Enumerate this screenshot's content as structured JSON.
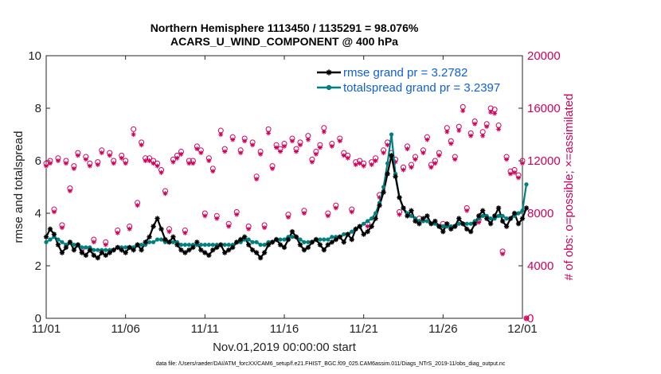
{
  "title": {
    "line1": "Northern Hemisphere 1113450 / 1135291 = 98.076%",
    "line2": "ACARS_U_WIND_COMPONENT @ 400 hPa"
  },
  "footer": "data file: /Users/raeder/DAI/ATM_forcXX/CAM6_setup/f.e21.FHIST_BGC.f09_025.CAM6assim.011/Diags_NTrS_2019-11/obs_diag_output.nc",
  "colors": {
    "rmse": "#000000",
    "spread": "#008080",
    "obs": "#d0005a",
    "legend_text": "#1060d8"
  },
  "chart_data": {
    "type": "line",
    "title": "Northern Hemisphere 1113450 / 1135291 = 98.076% — ACARS_U_WIND_COMPONENT @ 400 hPa",
    "xlabel": "Nov.01,2019 00:00:00 start",
    "ylabel": "rmse and totalspread",
    "ylabel_right": "# of obs: o=possible; ×=assimilated",
    "x_ticks": [
      "11/01",
      "11/06",
      "11/11",
      "11/16",
      "11/21",
      "11/26",
      "12/01"
    ],
    "xlim": [
      0,
      30
    ],
    "ylim": [
      0,
      10
    ],
    "y_ticks": [
      "0",
      "2",
      "4",
      "6",
      "8",
      "10"
    ],
    "ylim_right": [
      0,
      20000
    ],
    "y_ticks_right": [
      "0",
      "4000",
      "8000",
      "12000",
      "16000",
      "20000"
    ],
    "legend_position": "top-right",
    "series": [
      {
        "name": "rmse grand pr = 3.2782",
        "axis": "left",
        "x_start": 0,
        "dx": 0.25,
        "values": [
          3.1,
          3.4,
          3.2,
          2.8,
          2.5,
          2.7,
          2.9,
          2.6,
          2.8,
          2.5,
          2.4,
          2.6,
          2.4,
          2.3,
          2.5,
          2.4,
          2.5,
          2.6,
          2.7,
          2.6,
          2.5,
          2.7,
          2.6,
          2.8,
          2.6,
          2.9,
          3.1,
          3.5,
          3.8,
          3.4,
          3.0,
          2.9,
          3.1,
          2.8,
          2.6,
          2.5,
          2.6,
          2.7,
          2.9,
          2.6,
          2.5,
          2.4,
          2.6,
          2.7,
          2.8,
          2.5,
          2.6,
          2.7,
          2.9,
          3.0,
          3.1,
          2.8,
          2.6,
          2.5,
          2.3,
          2.5,
          2.8,
          2.9,
          3.0,
          2.8,
          2.7,
          3.0,
          3.3,
          3.1,
          2.8,
          2.6,
          2.7,
          2.9,
          3.0,
          2.8,
          2.6,
          2.8,
          2.9,
          3.0,
          3.1,
          2.9,
          3.2,
          3.0,
          3.4,
          3.5,
          3.2,
          3.3,
          3.5,
          3.8,
          4.3,
          4.8,
          5.5,
          6.2,
          5.4,
          4.6,
          4.2,
          3.9,
          4.1,
          3.7,
          3.6,
          3.8,
          3.9,
          3.6,
          3.7,
          3.5,
          3.3,
          3.6,
          3.4,
          3.5,
          3.8,
          3.6,
          3.4,
          3.3,
          3.6,
          3.9,
          4.1,
          3.8,
          3.6,
          3.9,
          4.2,
          3.7,
          3.5,
          3.8,
          4.0,
          3.6,
          3.8,
          4.2
        ]
      },
      {
        "name": "totalspread grand pr = 3.2397",
        "axis": "left",
        "x_start": 0,
        "dx": 0.25,
        "values": [
          2.9,
          3.0,
          3.1,
          3.0,
          2.9,
          2.8,
          2.9,
          2.8,
          2.8,
          2.7,
          2.7,
          2.7,
          2.6,
          2.6,
          2.6,
          2.6,
          2.6,
          2.6,
          2.7,
          2.7,
          2.7,
          2.7,
          2.7,
          2.8,
          2.8,
          2.8,
          2.9,
          2.9,
          3.0,
          3.0,
          2.9,
          2.9,
          2.9,
          2.9,
          2.8,
          2.8,
          2.8,
          2.8,
          2.8,
          2.8,
          2.8,
          2.8,
          2.8,
          2.8,
          2.8,
          2.8,
          2.8,
          2.8,
          2.9,
          2.9,
          3.0,
          3.0,
          2.9,
          2.9,
          2.8,
          2.8,
          2.9,
          2.9,
          3.0,
          3.0,
          3.0,
          3.1,
          3.1,
          3.1,
          3.0,
          2.9,
          2.9,
          2.9,
          3.0,
          3.0,
          3.0,
          3.0,
          3.1,
          3.1,
          3.1,
          3.2,
          3.2,
          3.3,
          3.4,
          3.5,
          3.6,
          3.7,
          3.8,
          4.0,
          4.4,
          5.0,
          5.9,
          7.0,
          5.5,
          4.6,
          4.2,
          4.0,
          3.9,
          3.8,
          3.7,
          3.7,
          3.7,
          3.6,
          3.6,
          3.5,
          3.5,
          3.5,
          3.5,
          3.5,
          3.6,
          3.6,
          3.6,
          3.6,
          3.7,
          3.8,
          3.9,
          3.9,
          3.8,
          3.8,
          3.9,
          3.9,
          3.8,
          3.8,
          3.9,
          4.0,
          4.1,
          5.1
        ]
      },
      {
        "name": "# of obs possible (o)",
        "axis": "right",
        "x_start": 0,
        "dx": 0.25,
        "values": [
          11800,
          12000,
          8300,
          12200,
          7100,
          12000,
          9900,
          11600,
          12600,
          5300,
          12300,
          11800,
          6000,
          11900,
          12800,
          5800,
          12600,
          12000,
          6700,
          12400,
          12000,
          7000,
          14400,
          8800,
          13400,
          12200,
          12200,
          12000,
          11800,
          11300,
          9700,
          6800,
          12100,
          12400,
          12700,
          6700,
          12000,
          12000,
          13100,
          12800,
          8000,
          12200,
          11400,
          7800,
          14300,
          12900,
          7200,
          13800,
          8100,
          12800,
          13700,
          7000,
          13400,
          10800,
          12700,
          7100,
          14400,
          11600,
          13200,
          12900,
          13300,
          7900,
          13700,
          12900,
          13400,
          8200,
          13900,
          12100,
          12700,
          13200,
          14500,
          8000,
          13300,
          8600,
          13700,
          12600,
          12400,
          8300,
          11900,
          12000,
          11800,
          7200,
          11900,
          12200,
          9400,
          12800,
          13400,
          12600,
          12100,
          8100,
          11500,
          13100,
          11700,
          12300,
          7600,
          12800,
          13800,
          11700,
          12000,
          12600,
          7200,
          14500,
          13500,
          12300,
          14600,
          16100,
          8400,
          14100,
          15000,
          7500,
          14200,
          14800,
          16000,
          15900,
          14700,
          5100,
          12300,
          11200,
          11300,
          10900,
          12000,
          0
        ]
      },
      {
        "name": "# of obs assimilated (×)",
        "axis": "right",
        "x_start": 0,
        "dx": 0.25,
        "values": [
          11600,
          11800,
          8100,
          12000,
          6900,
          11800,
          9700,
          11400,
          12400,
          5100,
          12100,
          11600,
          5800,
          11700,
          12600,
          5600,
          12400,
          11800,
          6500,
          12200,
          11800,
          6800,
          14000,
          8600,
          13200,
          12000,
          12000,
          11800,
          11600,
          11100,
          9500,
          6600,
          11900,
          12200,
          12500,
          6500,
          11800,
          11800,
          12900,
          12600,
          7800,
          12000,
          11200,
          7600,
          14000,
          12700,
          7000,
          13600,
          7900,
          12600,
          13500,
          6800,
          13200,
          10600,
          12500,
          6900,
          14100,
          11400,
          13000,
          12700,
          13100,
          7700,
          13500,
          12700,
          13200,
          8000,
          13600,
          11900,
          12500,
          13000,
          14200,
          7800,
          13100,
          8400,
          13500,
          12400,
          12200,
          8100,
          11700,
          11800,
          11600,
          7000,
          11700,
          12000,
          9200,
          12600,
          13200,
          12400,
          11900,
          7900,
          11300,
          12900,
          11500,
          12100,
          7400,
          12600,
          13600,
          11500,
          11800,
          12400,
          7000,
          14200,
          13300,
          12100,
          14300,
          15800,
          8200,
          13900,
          14800,
          7300,
          13900,
          14600,
          15700,
          15600,
          14400,
          4900,
          12100,
          11000,
          11100,
          10700,
          11800,
          0
        ]
      }
    ],
    "legend": [
      {
        "label": "rmse grand pr = 3.2782",
        "color": "#000000",
        "marker": "asterisk"
      },
      {
        "label": "totalspread grand pr = 3.2397",
        "color": "#008080",
        "marker": "circle"
      }
    ]
  }
}
